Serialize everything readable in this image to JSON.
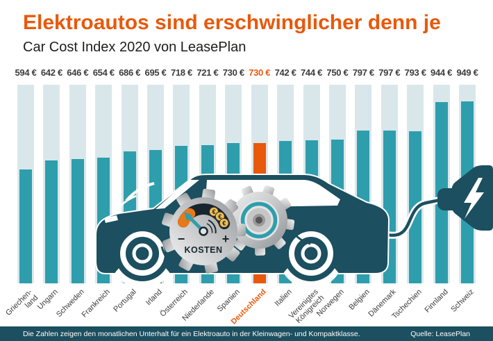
{
  "header": {
    "title": "Elektroautos sind erschwinglicher denn je",
    "subtitle": "Car Cost Index 2020 von LeasePlan"
  },
  "chart_data": {
    "type": "bar",
    "title": "Car Cost Index 2020 von LeasePlan",
    "unit": "€",
    "categories": [
      "Griechen-\nland",
      "Ungarn",
      "Schweden",
      "Frankreich",
      "Portugal",
      "Irland",
      "Österreich",
      "Niederlande",
      "Spanien",
      "Deutschland",
      "Italien",
      "Vereinigtes\nKönigreich",
      "Norwegen",
      "Belgien",
      "Dänemark",
      "Tschechien",
      "Finnland",
      "Schweiz"
    ],
    "values": [
      594,
      642,
      646,
      654,
      686,
      695,
      718,
      721,
      730,
      730,
      742,
      744,
      750,
      797,
      797,
      793,
      944,
      949
    ],
    "highlight_index": 9,
    "highlight_country": "Deutschland",
    "ylim": [
      0,
      1035
    ],
    "grid": false,
    "legend": "none",
    "bar_color": "#2E9EAC",
    "track_color": "#D9E7EB",
    "highlight_color": "#E8590C",
    "value_label_color": "#3C3C3B"
  },
  "illustration": {
    "icons": [
      "electric-car",
      "cost-gauge-gear",
      "gear",
      "charging-cable",
      "charging-plug",
      "lightning-bolt"
    ],
    "gauge_label": "KOSTEN",
    "minus": "−",
    "plus": "+",
    "coin_symbol": "€",
    "car_color": "#1C4F5F",
    "needle_color": "#2E9EAC"
  },
  "footer": {
    "note": "Die Zahlen zeigen den monatlichen Unterhalt für ein Elektroauto in der Kleinwagen- und Kompaktklasse.",
    "source": "Quelle: LeasePlan"
  },
  "colors": {
    "accent_orange": "#E8590C",
    "teal": "#2E9EAC",
    "dark_teal": "#1C4F5F",
    "pale_track": "#D9E7EB",
    "text_dark": "#3C3C3B"
  }
}
